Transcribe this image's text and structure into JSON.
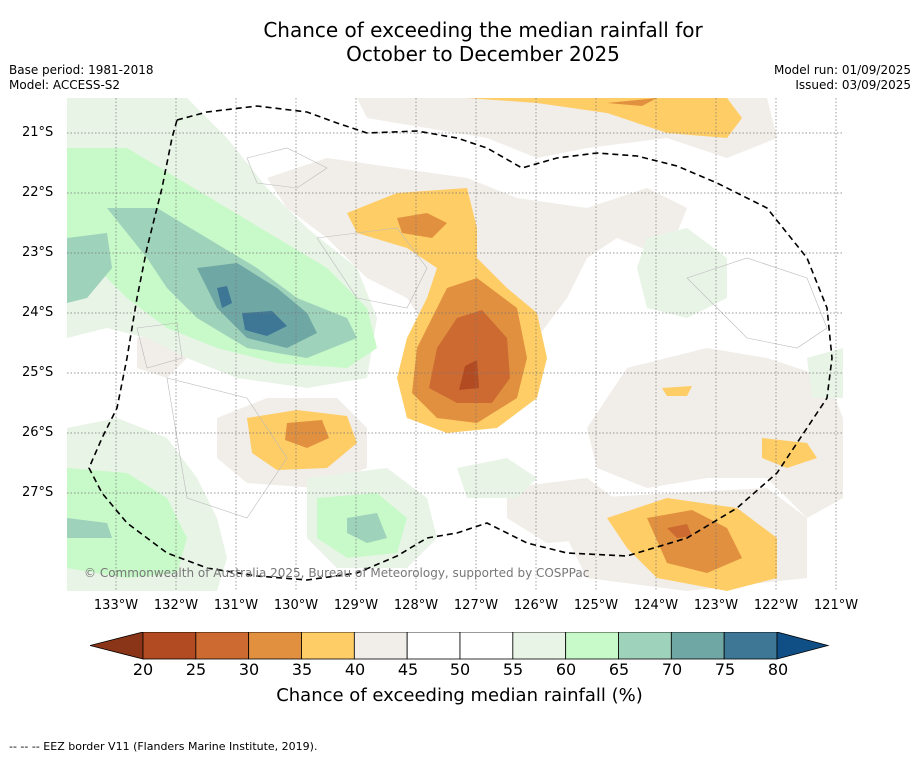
{
  "title": {
    "line1": "Chance of exceeding the median rainfall for",
    "line2": "October to December 2025"
  },
  "meta": {
    "base_period": "Base period: 1981-2018",
    "model": "Model: ACCESS-S2",
    "model_run": "Model run: 01/09/2025",
    "issued": "Issued: 03/09/2025"
  },
  "map": {
    "lon_labels": [
      "133°W",
      "132°W",
      "131°W",
      "130°W",
      "129°W",
      "128°W",
      "127°W",
      "126°W",
      "125°W",
      "124°W",
      "123°W",
      "122°W",
      "121°W"
    ],
    "lat_labels": [
      "21°S",
      "22°S",
      "23°S",
      "24°S",
      "25°S",
      "26°S",
      "27°S"
    ],
    "copyright": "© Commonwealth of Australia 2025, Bureau of Meteorology, supported by COSPPac",
    "lon_range": [
      -133.8,
      -120.9
    ],
    "lat_range": [
      -28.6,
      -20.4
    ]
  },
  "colorbar": {
    "ticks": [
      "20",
      "25",
      "30",
      "35",
      "40",
      "45",
      "50",
      "55",
      "60",
      "65",
      "70",
      "75",
      "80"
    ],
    "colors": [
      "#8b3518",
      "#b24a22",
      "#cd6a32",
      "#e0903f",
      "#ffcd65",
      "#f1ede8",
      "#ffffff",
      "#ffffff",
      "#e8f4e6",
      "#c8f9c8",
      "#9ed2bb",
      "#6fa7a5",
      "#3e7796",
      "#0f4f86"
    ],
    "label": "Chance of exceeding median rainfall (%)"
  },
  "footnote": "--  --  -- EEZ border V11 (Flanders Marine Institute, 2019)."
}
